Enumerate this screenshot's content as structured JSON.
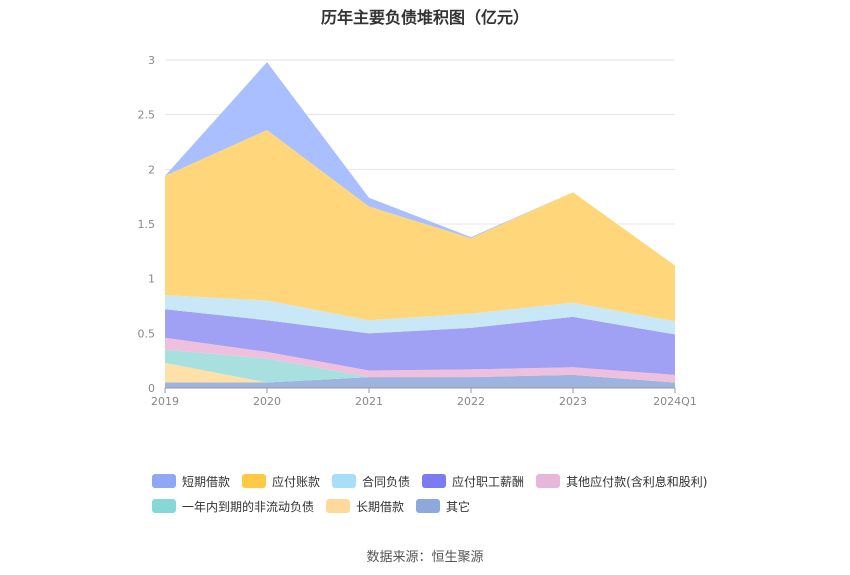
{
  "title": "历年主要负债堆积图（亿元）",
  "source_note": "数据来源：恒生聚源",
  "chart_data": {
    "type": "area",
    "stacked": true,
    "categories": [
      "2019",
      "2020",
      "2021",
      "2022",
      "2023",
      "2024Q1"
    ],
    "ylim": [
      0,
      3
    ],
    "yticks": [
      "0",
      "0.5",
      "1",
      "1.5",
      "2",
      "2.5",
      "3"
    ],
    "grid": true,
    "legend_position": "bottom",
    "series": [
      {
        "name": "其它",
        "color": "#9DB4E0",
        "values": [
          0.05,
          0.05,
          0.1,
          0.1,
          0.12,
          0.05
        ]
      },
      {
        "name": "长期借款",
        "color": "#FFE0A8",
        "values": [
          0.18,
          0,
          0,
          0,
          0,
          0
        ]
      },
      {
        "name": "一年内到期的非流动负债",
        "color": "#A8E0E0",
        "values": [
          0.12,
          0.22,
          0,
          0,
          0,
          0
        ]
      },
      {
        "name": "其他应付款(含利息和股利)",
        "color": "#EEC0DE",
        "values": [
          0.11,
          0.06,
          0.06,
          0.07,
          0.07,
          0.07
        ]
      },
      {
        "name": "应付职工薪酬",
        "color": "#A0A0F5",
        "values": [
          0.26,
          0.29,
          0.34,
          0.38,
          0.46,
          0.37
        ]
      },
      {
        "name": "合同负债",
        "color": "#C8E8F8",
        "values": [
          0.13,
          0.18,
          0.12,
          0.13,
          0.13,
          0.12
        ]
      },
      {
        "name": "应付账款",
        "color": "#FFD77A",
        "values": [
          1.09,
          1.56,
          1.04,
          0.69,
          1.01,
          0.51
        ]
      },
      {
        "name": "短期借款",
        "color": "#A9BFFF",
        "values": [
          0,
          0.62,
          0.08,
          0.01,
          0,
          0
        ]
      }
    ],
    "legend": [
      {
        "name": "短期借款",
        "color": "#8EA8F5"
      },
      {
        "name": "应付账款",
        "color": "#FFC845"
      },
      {
        "name": "合同负债",
        "color": "#A8DEF7"
      },
      {
        "name": "应付职工薪酬",
        "color": "#7B7CF2"
      },
      {
        "name": "其他应付款(含利息和股利)",
        "color": "#E8B6D8"
      },
      {
        "name": "一年内到期的非流动负债",
        "color": "#86D8D6"
      },
      {
        "name": "长期借款",
        "color": "#FFD89C"
      },
      {
        "name": "其它",
        "color": "#8DA9DB"
      }
    ]
  }
}
